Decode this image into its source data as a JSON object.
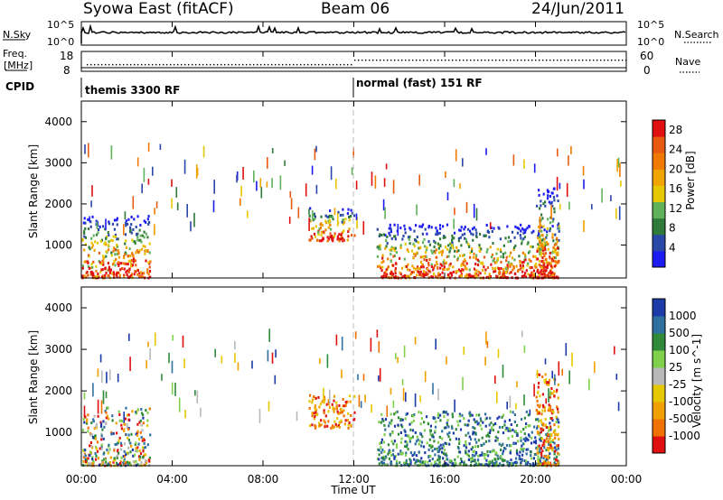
{
  "header": {
    "station": "Syowa East (fitACF)",
    "beam": "Beam 06",
    "date": "24/Jun/2011"
  },
  "strips": {
    "nsky_label": "N.Sky",
    "nsky_ticks": [
      "10^5",
      "10^0"
    ],
    "nsearch_label": "N.Search",
    "nsearch_ticks": [
      "10^5",
      "10^0"
    ],
    "freq_label": "Freq.",
    "freq_unit": "[MHz]",
    "freq_ticks": [
      "18",
      "8"
    ],
    "nave_label": "Nave",
    "nave_ticks": [
      "60",
      "0"
    ],
    "cpid_label": "CPID",
    "cpid_segments": [
      "themis 3300 RF",
      "normal (fast) 151 RF"
    ]
  },
  "x_axis": {
    "label": "Time UT",
    "ticks": [
      "00:00",
      "04:00",
      "08:00",
      "12:00",
      "16:00",
      "20:00",
      "00:00"
    ]
  },
  "colors": {
    "power": [
      "#1c1cf2",
      "#2a48a8",
      "#2f7a3a",
      "#5fb25a",
      "#e6c800",
      "#f0a400",
      "#f07a00",
      "#e85a10",
      "#e01010"
    ],
    "velocity": [
      "#e01010",
      "#f07000",
      "#f0a000",
      "#e6c800",
      "#b8b8b8",
      "#7fd04a",
      "#2f8a3a",
      "#2f70a0",
      "#1c3aa8"
    ]
  },
  "chart_data": [
    {
      "type": "heatmap",
      "panel": "power",
      "ylabel": "Slant Range [km]",
      "xlabel": "",
      "yticks": [
        "1000",
        "2000",
        "3000",
        "4000"
      ],
      "ylim": [
        200,
        4500
      ],
      "xlim_hours": [
        0,
        24
      ],
      "colorbar_label": "Power [dB]",
      "colorbar_ticks": [
        "4",
        "8",
        "12",
        "16",
        "20",
        "24",
        "28"
      ],
      "colorbar_range": [
        0,
        30
      ],
      "features": [
        {
          "t_start": "00:00",
          "t_end": "03:00",
          "range_km": [
            200,
            1700
          ],
          "level": "low-high"
        },
        {
          "t_start": "10:00",
          "t_end": "12:00",
          "range_km": [
            1100,
            1900
          ],
          "level": "medium"
        },
        {
          "t_start": "13:00",
          "t_end": "21:00",
          "range_km": [
            200,
            1500
          ],
          "level": "medium-high"
        },
        {
          "t_start": "20:00",
          "t_end": "21:00",
          "range_km": [
            200,
            2400
          ],
          "level": "high"
        }
      ]
    },
    {
      "type": "heatmap",
      "panel": "velocity",
      "ylabel": "Slant Range [km]",
      "xlabel": "Time UT",
      "yticks": [
        "1000",
        "2000",
        "3000",
        "4000"
      ],
      "ylim": [
        200,
        4500
      ],
      "xlim_hours": [
        0,
        24
      ],
      "colorbar_label": "Velocity [m s^-1]",
      "colorbar_ticks": [
        "1000",
        "500",
        "100",
        "25",
        "-25",
        "-100",
        "-500",
        "-1000"
      ],
      "colorbar_range": [
        -1000,
        1000
      ],
      "features": [
        {
          "t_start": "00:00",
          "t_end": "03:00",
          "range_km": [
            200,
            1600
          ],
          "velocity": "mixed"
        },
        {
          "t_start": "10:00",
          "t_end": "12:00",
          "range_km": [
            1100,
            1900
          ],
          "velocity": "negative"
        },
        {
          "t_start": "13:00",
          "t_end": "21:00",
          "range_km": [
            200,
            1500
          ],
          "velocity": "positive"
        },
        {
          "t_start": "20:00",
          "t_end": "21:00",
          "range_km": [
            200,
            2400
          ],
          "velocity": "negative"
        }
      ]
    }
  ]
}
